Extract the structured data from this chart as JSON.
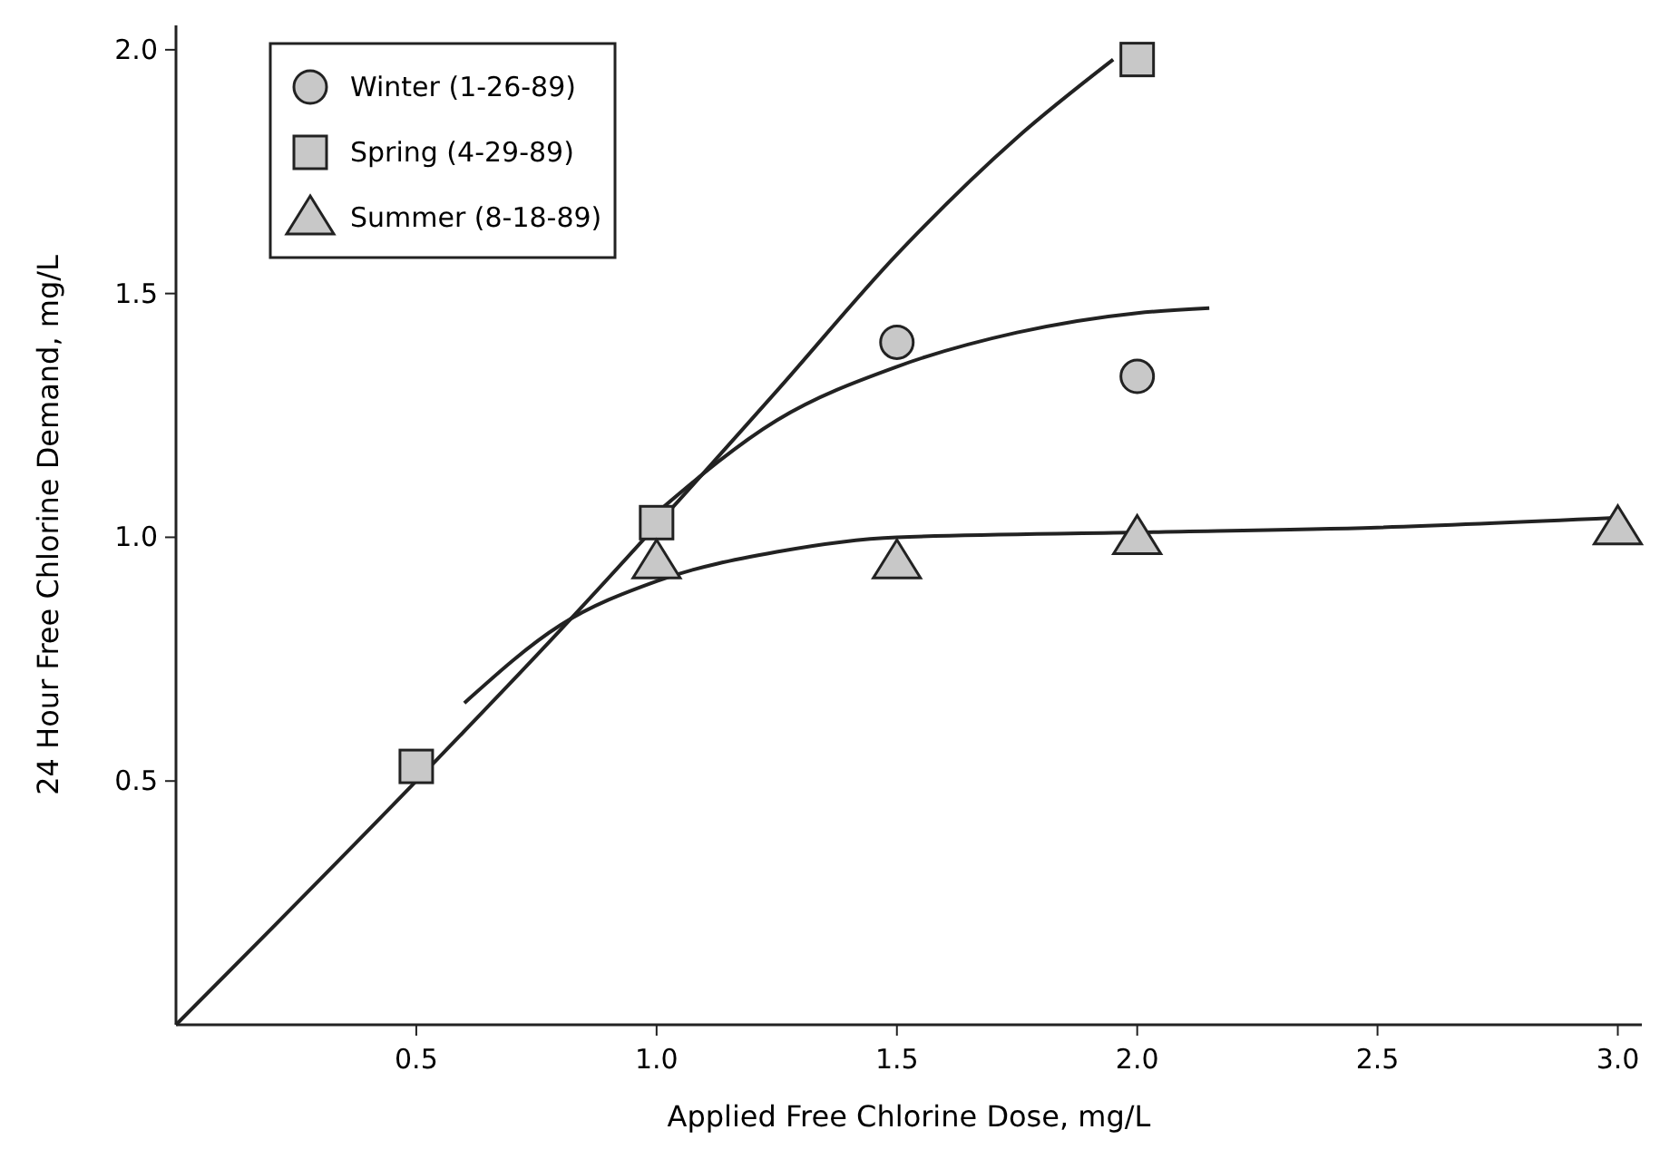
{
  "chart_data": {
    "type": "scatter",
    "xlabel": "Applied Free Chlorine Dose, mg/L",
    "ylabel": "24 Hour Free Chlorine Demand, mg/L",
    "xlim": [
      0,
      3.05
    ],
    "ylim": [
      0,
      2.05
    ],
    "xticks": [
      {
        "value": 0.5,
        "label": "0.5"
      },
      {
        "value": 1,
        "label": "1.0"
      },
      {
        "value": 1.5,
        "label": "1.5"
      },
      {
        "value": 2,
        "label": "2.0"
      },
      {
        "value": 2.5,
        "label": "2.5"
      },
      {
        "value": 3,
        "label": "3.0"
      }
    ],
    "yticks": [
      {
        "value": 0.5,
        "label": "0.5"
      },
      {
        "value": 1,
        "label": "1.0"
      },
      {
        "value": 1.5,
        "label": "1.5"
      },
      {
        "value": 2,
        "label": "2.0"
      }
    ],
    "legend": "top left",
    "grid": false,
    "series": [
      {
        "name": "Winter (1-26-89)",
        "marker": "circle",
        "color": "#c8c8c8",
        "x": [
          1.5,
          2.0
        ],
        "values": [
          1.4,
          1.33
        ]
      },
      {
        "name": "Spring (4-29-89)",
        "marker": "square",
        "color": "#c8c8c8",
        "x": [
          0.5,
          1.0,
          2.0
        ],
        "values": [
          0.53,
          1.03,
          1.98
        ]
      },
      {
        "name": "Summer (8-18-89)",
        "marker": "triangle",
        "color": "#c8c8c8",
        "x": [
          1.0,
          1.5,
          2.0,
          3.0
        ],
        "values": [
          0.95,
          0.95,
          1.0,
          1.02
        ]
      },
      {
        "type": "line",
        "marker": "none",
        "color": "#222222",
        "x": [
          0,
          0.5,
          0.8,
          1.25,
          1.5,
          1.75,
          1.95
        ],
        "values": [
          0,
          0.5,
          0.81,
          1.3,
          1.58,
          1.82,
          1.98
        ]
      },
      {
        "type": "line",
        "marker": "none",
        "color": "#222222",
        "x": [
          1.0,
          1.25,
          1.5,
          1.75,
          2.0,
          2.15
        ],
        "values": [
          1.05,
          1.24,
          1.35,
          1.42,
          1.46,
          1.47
        ]
      },
      {
        "type": "line",
        "marker": "none",
        "color": "#222222",
        "x": [
          0.6,
          0.8,
          1.0,
          1.25,
          1.5,
          2.0,
          2.5,
          3.0
        ],
        "values": [
          0.66,
          0.82,
          0.91,
          0.97,
          1.0,
          1.01,
          1.02,
          1.04
        ]
      }
    ]
  }
}
